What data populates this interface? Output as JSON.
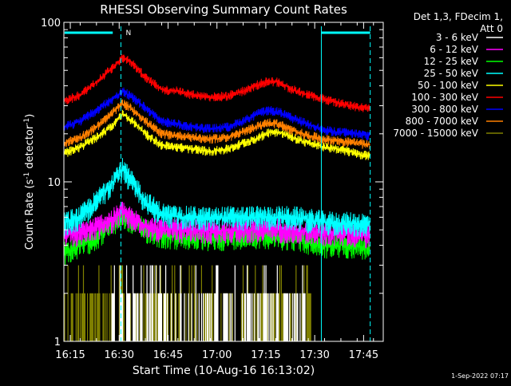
{
  "chart_data": {
    "type": "line",
    "title": "RHESSI Observing Summary Count Rates",
    "xlabel": "Start Time (10-Aug-16 16:13:02)",
    "ylabel_main": "Count Rate (s",
    "ylabel_sup1": "-1",
    "ylabel_mid": " detector",
    "ylabel_sup2": "-1",
    "ylabel_end": ")",
    "yscale": "log",
    "ylim": [
      1,
      100
    ],
    "xlim_minutes": [
      0,
      98
    ],
    "x_ticks": [
      "16:15",
      "16:30",
      "16:45",
      "17:00",
      "17:15",
      "17:30",
      "17:45"
    ],
    "x_tick_minutes": [
      1.97,
      16.97,
      31.97,
      46.97,
      61.97,
      76.97,
      91.97
    ],
    "y_ticks": [
      "1",
      "10",
      "100"
    ],
    "y_tick_values": [
      1,
      10,
      100
    ],
    "legend_position": "right",
    "legend_header": [
      "Det 1,3, FDecim 1,",
      "Att 0"
    ],
    "night_marker": "N",
    "timestamp": "1-Sep-2022 07:17",
    "x": [
      0,
      5,
      10,
      15,
      18,
      20,
      25,
      30,
      35,
      40,
      45,
      50,
      55,
      60,
      63,
      66,
      70,
      75,
      80,
      85,
      90,
      94
    ],
    "series": [
      {
        "name": "3 - 6 keV",
        "color": "#ffffff",
        "base": 1.6,
        "values": [
          1.6,
          1.6,
          1.6,
          1.6,
          1.6,
          1.6,
          1.6,
          1.6,
          1.6,
          1.6,
          1.6,
          1.6,
          1.6,
          1.6,
          1.6,
          1.6,
          1.6,
          1.6,
          1.6,
          1.6,
          1.6,
          1.6
        ]
      },
      {
        "name": "6 - 12 keV",
        "color": "#ff00ff",
        "base": 4.6,
        "values": [
          4.6,
          4.8,
          5.2,
          5.8,
          6.5,
          6.0,
          5.3,
          5.0,
          5.0,
          5.0,
          4.9,
          5.0,
          5.0,
          5.0,
          5.0,
          5.0,
          5.0,
          4.9,
          4.8,
          4.8,
          4.7,
          4.6
        ]
      },
      {
        "name": "12 - 25 keV",
        "color": "#00ff00",
        "base": 3.2,
        "values": [
          3.6,
          4.0,
          4.5,
          5.5,
          6.0,
          5.8,
          5.0,
          4.6,
          4.5,
          4.5,
          4.4,
          4.5,
          4.6,
          4.6,
          4.6,
          4.5,
          4.5,
          4.2,
          4.0,
          4.0,
          4.0,
          3.8
        ]
      },
      {
        "name": "25 - 50 keV",
        "color": "#00ffff",
        "base": 5.2,
        "values": [
          5.5,
          6.0,
          7.5,
          10.0,
          12.0,
          10.5,
          7.5,
          6.3,
          6.0,
          6.0,
          5.9,
          6.0,
          6.0,
          6.0,
          6.0,
          6.0,
          6.0,
          5.8,
          5.6,
          5.5,
          5.5,
          5.4
        ]
      },
      {
        "name": "50 - 100 keV",
        "color": "#ffff00",
        "base": 14.0,
        "values": [
          15.0,
          16.5,
          19.0,
          22.5,
          26.5,
          25.0,
          20.0,
          17.0,
          16.5,
          16.0,
          15.5,
          16.0,
          17.5,
          19.0,
          20.5,
          20.5,
          19.0,
          17.5,
          16.5,
          16.0,
          15.0,
          14.5
        ]
      },
      {
        "name": "100 - 300 keV",
        "color": "#ff0000",
        "base": 30.0,
        "values": [
          32.0,
          35.0,
          42.0,
          52.0,
          60.0,
          58.0,
          45.0,
          38.0,
          37.0,
          35.0,
          34.0,
          34.5,
          37.0,
          41.0,
          43.0,
          42.0,
          38.0,
          35.0,
          33.0,
          31.0,
          29.5,
          29.0
        ]
      },
      {
        "name": "300 - 800 keV",
        "color": "#0000ff",
        "base": 19.0,
        "values": [
          22.0,
          24.0,
          28.0,
          33.0,
          37.0,
          35.0,
          29.0,
          24.0,
          23.0,
          22.0,
          21.5,
          22.0,
          24.0,
          27.0,
          28.0,
          27.5,
          25.0,
          23.0,
          21.0,
          20.5,
          20.0,
          19.5
        ]
      },
      {
        "name": "800 - 7000 keV",
        "color": "#ff8000",
        "base": 17.0,
        "values": [
          17.5,
          19.0,
          22.0,
          27.0,
          31.0,
          29.5,
          24.0,
          20.0,
          19.5,
          19.0,
          18.5,
          19.0,
          20.5,
          22.5,
          23.5,
          23.0,
          21.0,
          19.5,
          18.5,
          18.0,
          17.5,
          17.0
        ]
      },
      {
        "name": "7000 - 15000 keV",
        "color": "#808000",
        "base": 1.6,
        "values": [
          1.6,
          1.6,
          1.6,
          1.6,
          1.6,
          1.6,
          1.6,
          1.6,
          1.6,
          1.6,
          1.6,
          1.6,
          1.6,
          1.6,
          1.6,
          1.6,
          1.6,
          1.6,
          1.6,
          1.6,
          1.6,
          1.6
        ]
      }
    ]
  }
}
